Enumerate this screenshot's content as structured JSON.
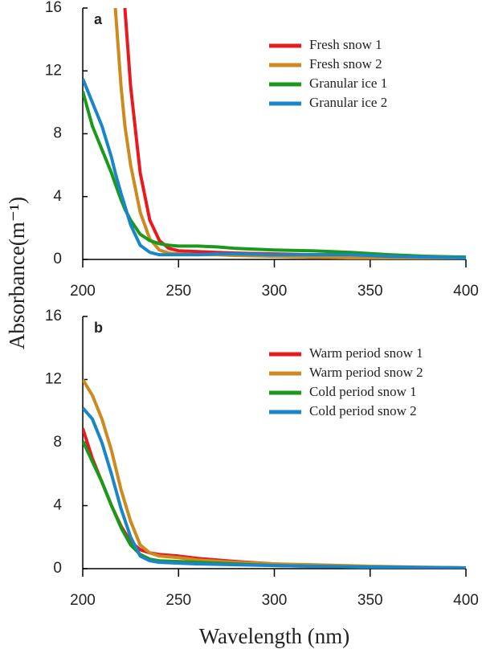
{
  "chart_data": [
    {
      "type": "line",
      "panel_label": "a",
      "y_label": "Absorbance(m⁻¹)",
      "x": [
        200,
        205,
        210,
        215,
        217,
        220,
        222,
        225,
        230,
        235,
        240,
        245,
        250,
        260,
        270,
        280,
        300,
        320,
        340,
        360,
        380,
        400
      ],
      "series": [
        {
          "name": "Fresh snow 1",
          "color": "#e8191f",
          "values": [
            null,
            null,
            null,
            null,
            null,
            null,
            16,
            11,
            5.5,
            2.5,
            1.2,
            0.7,
            0.55,
            0.5,
            0.45,
            0.4,
            0.35,
            0.3,
            0.3,
            0.2,
            0.15,
            0.1
          ]
        },
        {
          "name": "Fresh snow 2",
          "color": "#cc8a1f",
          "values": [
            null,
            null,
            null,
            null,
            16,
            11,
            8.5,
            6,
            3,
            1.3,
            0.6,
            0.4,
            0.35,
            0.3,
            0.3,
            0.25,
            0.2,
            0.15,
            0.1,
            0.1,
            0.08,
            0.05
          ]
        },
        {
          "name": "Granular ice 1",
          "color": "#1a9a1a",
          "values": [
            10.7,
            8.5,
            7,
            5.5,
            4.8,
            3.8,
            3.2,
            2.5,
            1.6,
            1.2,
            1.0,
            0.9,
            0.85,
            0.85,
            0.8,
            0.7,
            0.6,
            0.55,
            0.45,
            0.3,
            0.2,
            0.15
          ]
        },
        {
          "name": "Granular ice 2",
          "color": "#1a85c8",
          "values": [
            11.5,
            10,
            8.5,
            6.5,
            5.5,
            4.2,
            3.4,
            2.2,
            0.9,
            0.45,
            0.3,
            0.3,
            0.3,
            0.3,
            0.35,
            0.35,
            0.3,
            0.3,
            0.3,
            0.2,
            0.15,
            0.1
          ]
        }
      ],
      "xlim": [
        200,
        400
      ],
      "xticks": [
        200,
        250,
        300,
        350,
        400
      ],
      "ylim": [
        0,
        16
      ],
      "yticks": [
        0,
        4,
        8,
        12,
        16
      ],
      "legend": "upper right"
    },
    {
      "type": "line",
      "panel_label": "b",
      "x_label": "Wavelength (nm)",
      "x": [
        200,
        205,
        210,
        215,
        220,
        225,
        230,
        235,
        240,
        250,
        260,
        280,
        300,
        320,
        350,
        400
      ],
      "series": [
        {
          "name": "Warm period snow 1",
          "color": "#e8191f",
          "values": [
            8.9,
            7,
            5.5,
            4,
            2.7,
            1.7,
            1.2,
            1.0,
            0.9,
            0.8,
            0.65,
            0.45,
            0.3,
            0.2,
            0.1,
            0.05
          ]
        },
        {
          "name": "Warm period snow 2",
          "color": "#cc8a1f",
          "values": [
            12,
            11,
            9.5,
            7.5,
            5,
            3,
            1.5,
            1.0,
            0.8,
            0.7,
            0.55,
            0.4,
            0.3,
            0.25,
            0.15,
            0.05
          ]
        },
        {
          "name": "Cold period snow 1",
          "color": "#1a9a1a",
          "values": [
            8.1,
            6.8,
            5.5,
            4,
            2.6,
            1.5,
            0.9,
            0.6,
            0.5,
            0.45,
            0.4,
            0.3,
            0.2,
            0.15,
            0.1,
            0.05
          ]
        },
        {
          "name": "Cold period snow 2",
          "color": "#1a85c8",
          "values": [
            10.2,
            9.5,
            8,
            6,
            3.8,
            2,
            0.8,
            0.5,
            0.4,
            0.35,
            0.3,
            0.25,
            0.2,
            0.15,
            0.1,
            0.05
          ]
        }
      ],
      "xlim": [
        200,
        400
      ],
      "xticks": [
        200,
        250,
        300,
        350,
        400
      ],
      "ylim": [
        0,
        16
      ],
      "yticks": [
        0,
        4,
        8,
        12,
        16
      ],
      "legend": "upper right"
    }
  ]
}
